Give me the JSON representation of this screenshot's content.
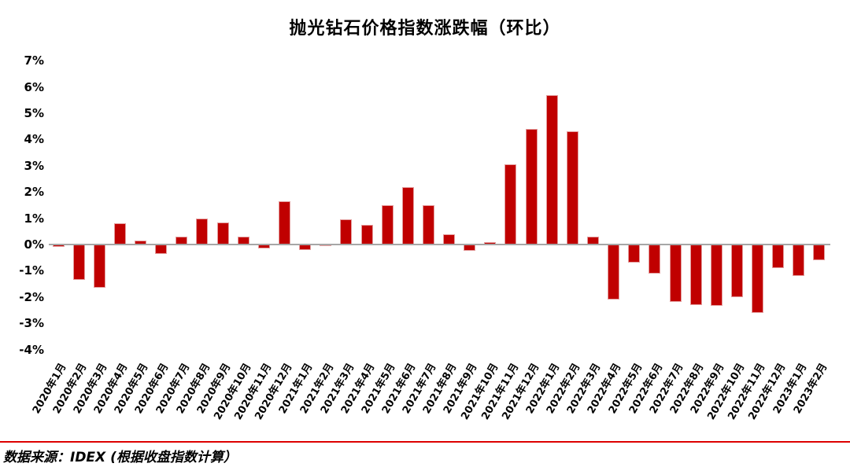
{
  "chart_data": {
    "type": "bar",
    "title": "抛光钻石价格指数涨跌幅（环比）",
    "categories": [
      "2020年1月",
      "2020年2月",
      "2020年3月",
      "2020年4月",
      "2020年5月",
      "2020年6月",
      "2020年7月",
      "2020年8月",
      "2020年9月",
      "2020年10月",
      "2020年11月",
      "2020年12月",
      "2021年1月",
      "2021年2月",
      "2021年3月",
      "2021年4月",
      "2021年5月",
      "2021年6月",
      "2021年7月",
      "2021年8月",
      "2021年9月",
      "2021年10月",
      "2021年11月",
      "2021年12月",
      "2022年1月",
      "2022年2月",
      "2022年3月",
      "2022年4月",
      "2022年5月",
      "2022年6月",
      "2022年7月",
      "2022年8月",
      "2022年9月",
      "2022年10月",
      "2022年11月",
      "2022年12月",
      "2023年1月",
      "2023年2月"
    ],
    "values": [
      -0.1,
      -1.35,
      -1.65,
      0.8,
      0.15,
      -0.35,
      0.3,
      1.0,
      0.85,
      0.3,
      -0.15,
      1.65,
      -0.2,
      -0.05,
      0.95,
      0.75,
      1.5,
      2.2,
      1.5,
      0.4,
      -0.25,
      0.1,
      3.05,
      4.4,
      5.7,
      4.3,
      0.3,
      -2.1,
      -0.7,
      -1.1,
      -2.2,
      -2.3,
      -2.35,
      -2.0,
      -2.6,
      -0.9,
      -1.2,
      -0.6
    ],
    "ytick_labels": [
      "7%",
      "6%",
      "5%",
      "4%",
      "3%",
      "2%",
      "1%",
      "0%",
      "-1%",
      "-2%",
      "-3%",
      "-4%"
    ],
    "ytick_values": [
      7,
      6,
      5,
      4,
      3,
      2,
      1,
      0,
      -1,
      -2,
      -3,
      -4
    ],
    "ylim": [
      -4,
      7
    ],
    "xlabel": "",
    "ylabel": "",
    "grid": false,
    "legend_position": "none",
    "bar_color": "#C00000",
    "bar_border_color": "#E39C9C",
    "axis_line_color": "#A6A6A6"
  },
  "footer": {
    "source_note": "数据来源：IDEX (根据收盘指数计算）",
    "divider_color": "#DD0000"
  }
}
